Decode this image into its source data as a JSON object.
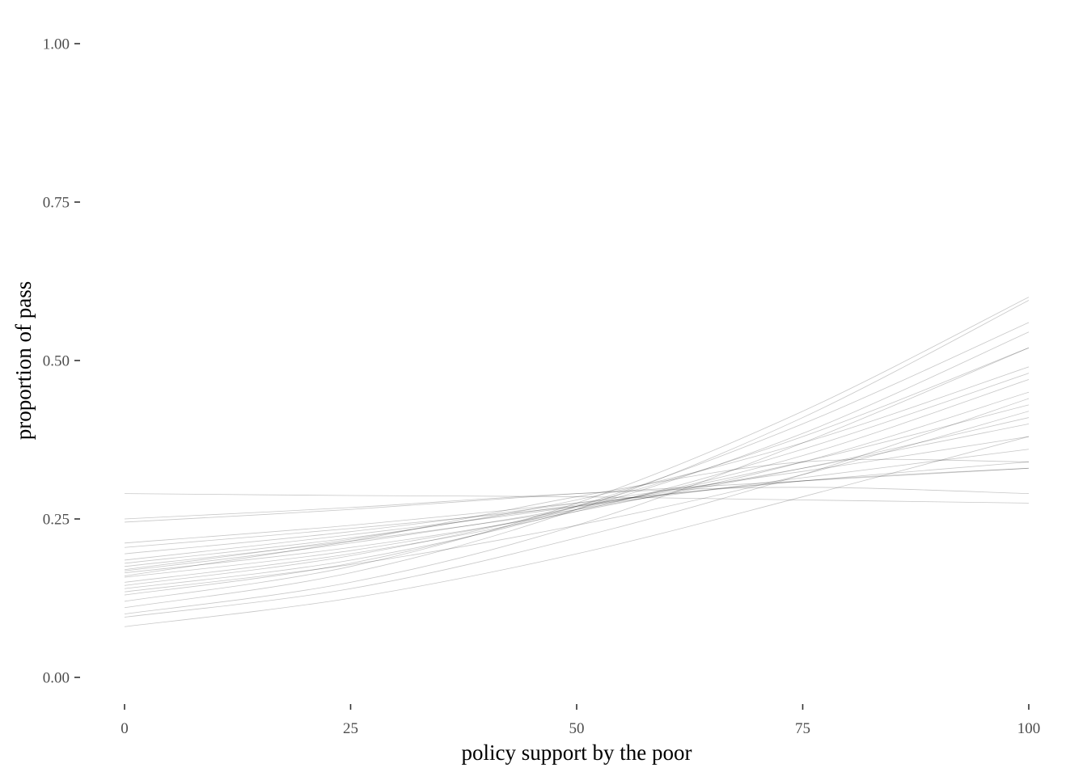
{
  "chart_data": {
    "type": "line",
    "title": "",
    "xlabel": "policy support by the poor",
    "ylabel": "proportion of pass",
    "xlim": [
      0,
      100
    ],
    "ylim": [
      0,
      1
    ],
    "x_ticks": [
      0,
      25,
      50,
      75,
      100
    ],
    "x_tick_labels": [
      "0",
      "25",
      "50",
      "75",
      "100"
    ],
    "y_ticks": [
      0,
      0.25,
      0.5,
      0.75,
      1
    ],
    "y_tick_labels": [
      "0.00",
      "0.25",
      "0.50",
      "0.75",
      "1.00"
    ],
    "grid": false,
    "legend": "none",
    "line_color": "#000000",
    "x": [
      0,
      25,
      50,
      75,
      100
    ],
    "series": [
      {
        "values": [
          0.29,
          0.287,
          0.285,
          0.28,
          0.275
        ]
      },
      {
        "values": [
          0.25,
          0.268,
          0.29,
          0.3,
          0.29
        ]
      },
      {
        "values": [
          0.245,
          0.265,
          0.29,
          0.31,
          0.33
        ]
      },
      {
        "values": [
          0.212,
          0.24,
          0.275,
          0.31,
          0.34
        ]
      },
      {
        "values": [
          0.205,
          0.235,
          0.27,
          0.315,
          0.36
        ]
      },
      {
        "values": [
          0.195,
          0.23,
          0.275,
          0.325,
          0.38
        ]
      },
      {
        "values": [
          0.185,
          0.225,
          0.27,
          0.33,
          0.4
        ]
      },
      {
        "values": [
          0.175,
          0.215,
          0.265,
          0.33,
          0.41
        ]
      },
      {
        "values": [
          0.168,
          0.212,
          0.268,
          0.34,
          0.43
        ]
      },
      {
        "values": [
          0.165,
          0.205,
          0.262,
          0.34,
          0.45
        ]
      },
      {
        "values": [
          0.158,
          0.2,
          0.265,
          0.35,
          0.47
        ]
      },
      {
        "values": [
          0.15,
          0.195,
          0.262,
          0.36,
          0.48
        ]
      },
      {
        "values": [
          0.145,
          0.192,
          0.27,
          0.38,
          0.52
        ]
      },
      {
        "values": [
          0.14,
          0.185,
          0.265,
          0.385,
          0.545
        ]
      },
      {
        "values": [
          0.13,
          0.18,
          0.27,
          0.4,
          0.56
        ]
      },
      {
        "values": [
          0.12,
          0.175,
          0.275,
          0.42,
          0.6
        ]
      },
      {
        "values": [
          0.11,
          0.165,
          0.265,
          0.41,
          0.595
        ]
      },
      {
        "values": [
          0.1,
          0.15,
          0.24,
          0.37,
          0.52
        ]
      },
      {
        "values": [
          0.095,
          0.14,
          0.22,
          0.32,
          0.44
        ]
      },
      {
        "values": [
          0.08,
          0.125,
          0.195,
          0.285,
          0.38
        ]
      },
      {
        "values": [
          0.16,
          0.215,
          0.285,
          0.34,
          0.34
        ]
      },
      {
        "values": [
          0.18,
          0.22,
          0.272,
          0.31,
          0.33
        ]
      },
      {
        "values": [
          0.135,
          0.178,
          0.24,
          0.32,
          0.42
        ]
      },
      {
        "values": [
          0.17,
          0.218,
          0.28,
          0.37,
          0.49
        ]
      }
    ]
  }
}
